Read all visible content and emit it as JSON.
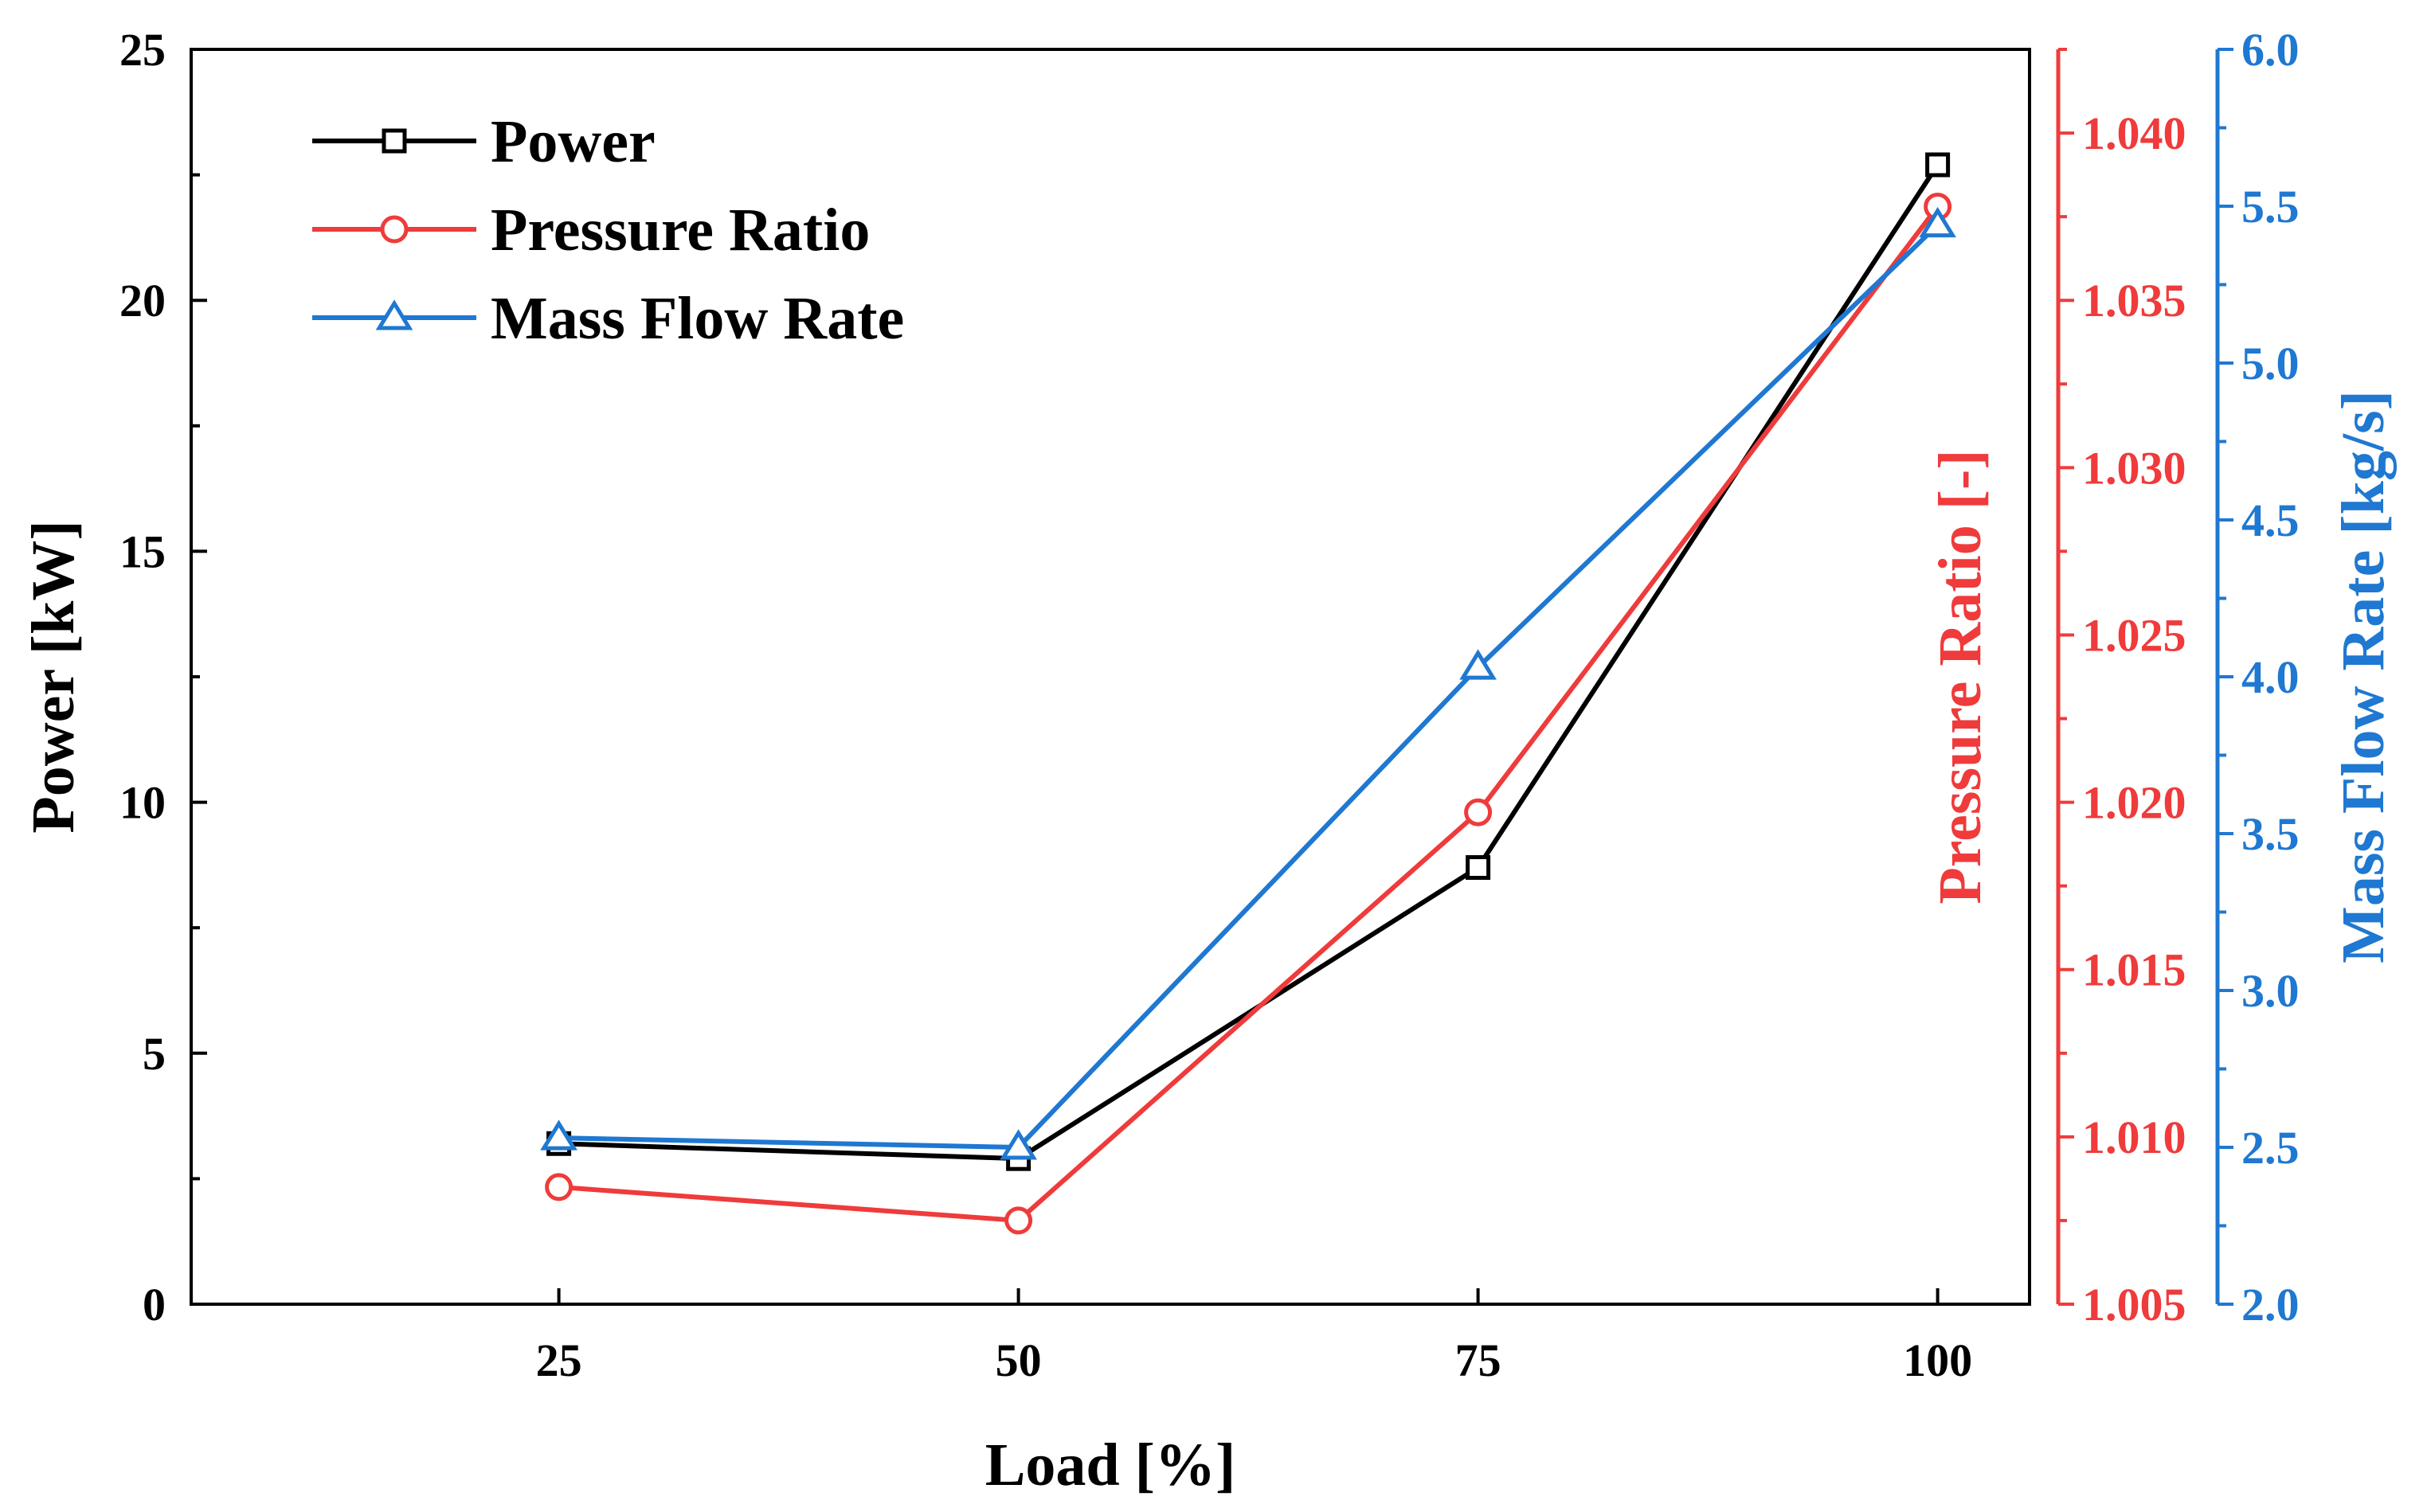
{
  "chart_data": {
    "type": "line",
    "x": [
      25,
      50,
      75,
      100
    ],
    "xlabel": "Load [%]",
    "xticks": [
      "25",
      "50",
      "75",
      "100"
    ],
    "series": [
      {
        "name": "Power",
        "axis": "left",
        "marker": "square",
        "color": "#000000",
        "values": [
          3.2,
          2.9,
          8.7,
          22.7
        ]
      },
      {
        "name": "Pressure Ratio",
        "axis": "right1",
        "marker": "circle",
        "color": "#ef3b3b",
        "values": [
          1.0085,
          1.0075,
          1.0197,
          1.0378
        ]
      },
      {
        "name": "Mass Flow Rate",
        "axis": "right2",
        "marker": "triangle",
        "color": "#1f78d1",
        "values": [
          2.53,
          2.5,
          4.03,
          5.44
        ]
      }
    ],
    "axes": {
      "left": {
        "label": "Power [kW]",
        "ylim": [
          0,
          25
        ],
        "ticks": [
          "0",
          "5",
          "10",
          "15",
          "20",
          "25"
        ],
        "color": "#000000"
      },
      "right1": {
        "label": "Pressure Ratio [-]",
        "ylim": [
          1.005,
          1.0425
        ],
        "ticks": [
          "1.005",
          "1.010",
          "1.015",
          "1.020",
          "1.025",
          "1.030",
          "1.035",
          "1.040"
        ],
        "color": "#ef3b3b"
      },
      "right2": {
        "label": "Mass Flow Rate [kg/s]",
        "ylim": [
          2.0,
          6.0
        ],
        "ticks": [
          "2.0",
          "2.5",
          "3.0",
          "3.5",
          "4.0",
          "4.5",
          "5.0",
          "5.5",
          "6.0"
        ],
        "color": "#1f78d1"
      }
    },
    "legend": {
      "placement": "top-left",
      "entries": [
        "Power",
        "Pressure Ratio",
        "Mass Flow Rate"
      ]
    },
    "grid": false
  }
}
